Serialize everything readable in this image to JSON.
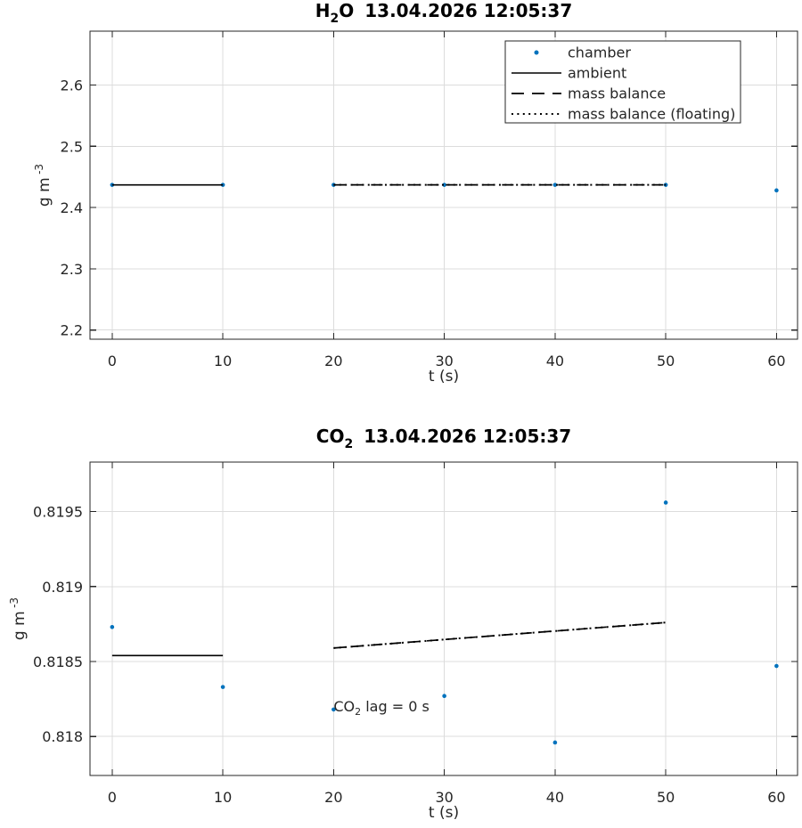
{
  "figure": {
    "background": "#ffffff",
    "accent_blue": "#0072BD",
    "line_black": "#000000",
    "axis_color": "#262626",
    "grid_color": "#dcdcdc",
    "legend_bg": "#ffffff",
    "legend_border": "#262626"
  },
  "chart_data": [
    {
      "id": "h2o",
      "type": "line",
      "title": {
        "main": "H",
        "sub": "2",
        "tail": "O",
        "timestamp": "13.04.2026 12:05:37"
      },
      "xlabel": "t (s)",
      "ylabel": {
        "main": "g m",
        "sup": "-3"
      },
      "xlim": [
        -2,
        61.9
      ],
      "ylim": [
        2.185,
        2.688
      ],
      "xticks": {
        "values": [
          0,
          10,
          20,
          30,
          40,
          50,
          60
        ],
        "labels": [
          "0",
          "10",
          "20",
          "30",
          "40",
          "50",
          "60"
        ]
      },
      "yticks": {
        "values": [
          2.2,
          2.3,
          2.4,
          2.5,
          2.6
        ],
        "labels": [
          "2.2",
          "2.3",
          "2.4",
          "2.5",
          "2.6"
        ]
      },
      "grid": true,
      "legend": {
        "position": "northeast",
        "entries": [
          {
            "label": "chamber",
            "style": "scatter",
            "color": "#0072BD"
          },
          {
            "label": "ambient",
            "style": "solid",
            "color": "#000000"
          },
          {
            "label": "mass balance",
            "style": "dashed",
            "color": "#000000"
          },
          {
            "label": "mass balance (floating)",
            "style": "dotted",
            "color": "#000000"
          }
        ]
      },
      "annotation": null,
      "series": [
        {
          "name": "chamber",
          "style": "scatter",
          "color": "#0072BD",
          "x": [
            0,
            10,
            20,
            30,
            40,
            50,
            60
          ],
          "y": [
            2.437,
            2.437,
            2.437,
            2.437,
            2.437,
            2.437,
            2.428
          ]
        },
        {
          "name": "ambient",
          "style": "solid",
          "color": "#000000",
          "x": [
            0,
            10
          ],
          "y": [
            2.437,
            2.437
          ]
        },
        {
          "name": "mass balance",
          "style": "dashed",
          "color": "#000000",
          "x": [
            20,
            50
          ],
          "y": [
            2.437,
            2.437
          ]
        },
        {
          "name": "mass balance (floating)",
          "style": "dotted",
          "color": "#000000",
          "x": [
            20,
            50
          ],
          "y": [
            2.437,
            2.437
          ]
        }
      ]
    },
    {
      "id": "co2",
      "type": "line",
      "title": {
        "main": "CO",
        "sub": "2",
        "tail": "",
        "timestamp": "13.04.2026 12:05:37"
      },
      "xlabel": "t (s)",
      "ylabel": {
        "main": "g m",
        "sup": "-3"
      },
      "xlim": [
        -2,
        61.9
      ],
      "ylim": [
        0.81774,
        0.81983
      ],
      "xticks": {
        "values": [
          0,
          10,
          20,
          30,
          40,
          50,
          60
        ],
        "labels": [
          "0",
          "10",
          "20",
          "30",
          "40",
          "50",
          "60"
        ]
      },
      "yticks": {
        "values": [
          0.818,
          0.8185,
          0.819,
          0.8195
        ],
        "labels": [
          "0.818",
          "0.8185",
          "0.819",
          "0.8195"
        ]
      },
      "grid": true,
      "legend": null,
      "annotation": {
        "x": 20,
        "y": 0.8182,
        "main": "CO",
        "sub": "2",
        "tail": " lag = 0 s"
      },
      "series": [
        {
          "name": "chamber",
          "style": "scatter",
          "color": "#0072BD",
          "x": [
            0,
            10,
            20,
            30,
            40,
            50,
            60
          ],
          "y": [
            0.81873,
            0.81833,
            0.81818,
            0.81827,
            0.81796,
            0.81956,
            0.81847
          ]
        },
        {
          "name": "ambient",
          "style": "solid",
          "color": "#000000",
          "x": [
            0,
            10
          ],
          "y": [
            0.81854,
            0.81854
          ]
        },
        {
          "name": "mass balance",
          "style": "dashed",
          "color": "#000000",
          "x": [
            20,
            50
          ],
          "y": [
            0.81859,
            0.81876
          ]
        },
        {
          "name": "mass balance (floating)",
          "style": "dotted",
          "color": "#000000",
          "x": [
            20,
            50
          ],
          "y": [
            0.81859,
            0.81876
          ]
        }
      ]
    }
  ]
}
